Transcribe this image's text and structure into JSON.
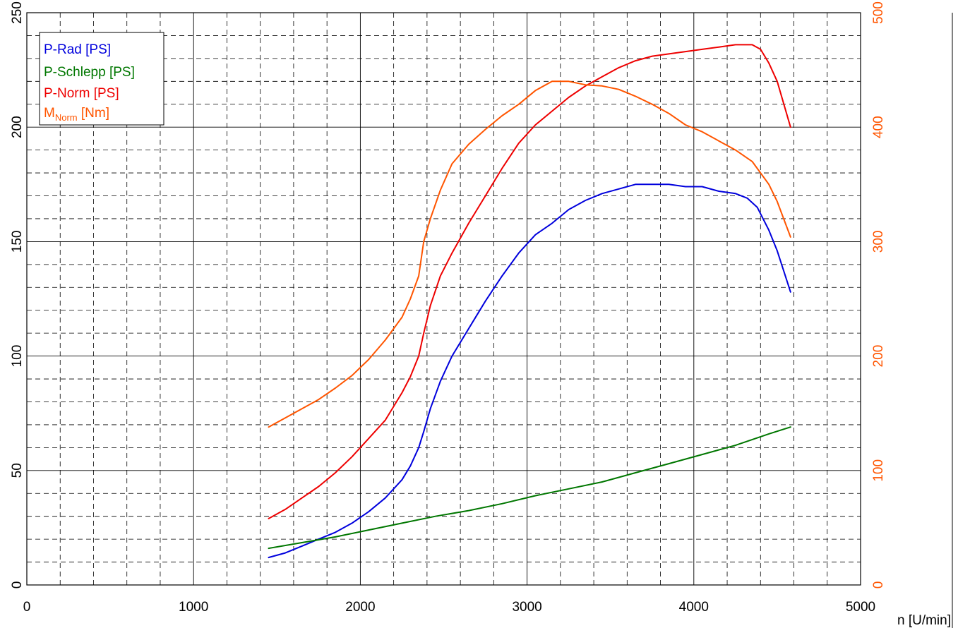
{
  "chart_data": {
    "type": "line",
    "xlabel": "n [U/min]",
    "xlim": [
      0,
      5000
    ],
    "x_ticks": [
      "0",
      "1000",
      "2000",
      "3000",
      "4000",
      "5000"
    ],
    "y_left": {
      "lim": [
        0,
        250
      ],
      "ticks": [
        "0",
        "50",
        "100",
        "150",
        "200",
        "250"
      ]
    },
    "y_right": {
      "lim": [
        0,
        500
      ],
      "ticks": [
        "0",
        "100",
        "200",
        "300",
        "400",
        "500"
      ],
      "color": "#ff5500"
    },
    "grid": true,
    "legend_position": "top-left",
    "series": [
      {
        "name": "P-Rad [PS]",
        "axis": "left",
        "color": "#0000dd",
        "x": [
          1450,
          1550,
          1650,
          1750,
          1850,
          1950,
          2050,
          2150,
          2250,
          2300,
          2350,
          2380,
          2420,
          2480,
          2550,
          2650,
          2750,
          2850,
          2950,
          3050,
          3150,
          3250,
          3350,
          3450,
          3550,
          3650,
          3750,
          3850,
          3950,
          4050,
          4150,
          4250,
          4320,
          4380,
          4450,
          4500,
          4580
        ],
        "y": [
          12,
          14,
          17,
          20,
          23,
          27,
          32,
          38,
          46,
          52,
          60,
          67,
          77,
          89,
          100,
          112,
          124,
          135,
          145,
          153,
          158,
          164,
          168,
          171,
          173,
          175,
          175,
          175,
          174,
          174,
          172,
          171,
          169,
          165,
          155,
          146,
          128
        ]
      },
      {
        "name": "P-Schlepp [PS]",
        "axis": "left",
        "color": "#007700",
        "x": [
          1450,
          1650,
          1850,
          2050,
          2250,
          2450,
          2650,
          2850,
          3050,
          3250,
          3450,
          3650,
          3850,
          4050,
          4250,
          4450,
          4580
        ],
        "y": [
          16,
          18.5,
          21,
          24,
          27,
          30,
          32.5,
          35.5,
          39,
          42,
          45,
          49,
          53,
          57,
          61,
          66,
          69
        ]
      },
      {
        "name": "P-Norm [PS]",
        "axis": "left",
        "color": "#ee0000",
        "x": [
          1450,
          1550,
          1650,
          1750,
          1850,
          1950,
          2050,
          2150,
          2250,
          2300,
          2350,
          2380,
          2420,
          2480,
          2550,
          2650,
          2750,
          2850,
          2950,
          3050,
          3150,
          3250,
          3350,
          3450,
          3550,
          3650,
          3750,
          3850,
          3950,
          4050,
          4150,
          4250,
          4300,
          4350,
          4400,
          4450,
          4500,
          4580
        ],
        "y": [
          29,
          33,
          38,
          43,
          49,
          56,
          64,
          72,
          84,
          91,
          100,
          110,
          122,
          135,
          145,
          158,
          170,
          182,
          193,
          201,
          207,
          213,
          218,
          222,
          226,
          229,
          231,
          232,
          233,
          234,
          235,
          236,
          236,
          236,
          234,
          228,
          220,
          200
        ]
      },
      {
        "name": "M_Norm [Nm]",
        "axis": "right",
        "color": "#ff5500",
        "x": [
          1450,
          1550,
          1650,
          1750,
          1850,
          1950,
          2050,
          2150,
          2250,
          2300,
          2350,
          2380,
          2420,
          2480,
          2550,
          2650,
          2750,
          2850,
          2950,
          3050,
          3150,
          3250,
          3350,
          3450,
          3550,
          3650,
          3750,
          3850,
          3950,
          4050,
          4150,
          4250,
          4350,
          4450,
          4500,
          4580
        ],
        "y": [
          138,
          146,
          154,
          162,
          172,
          183,
          197,
          214,
          234,
          250,
          270,
          300,
          320,
          345,
          368,
          385,
          398,
          410,
          420,
          432,
          440,
          440,
          437,
          436,
          433,
          427,
          420,
          412,
          402,
          396,
          388,
          380,
          370,
          350,
          335,
          304
        ]
      }
    ],
    "legend": {
      "entries": [
        {
          "text": "P-Rad [PS]",
          "color": "#0000dd"
        },
        {
          "text": "P-Schlepp [PS]",
          "color": "#007700"
        },
        {
          "text": "P-Norm [PS]",
          "color": "#ee0000"
        },
        {
          "text_main": "M",
          "text_sub": "Norm",
          "text_after": " [Nm]",
          "color": "#ff5500"
        }
      ]
    }
  }
}
